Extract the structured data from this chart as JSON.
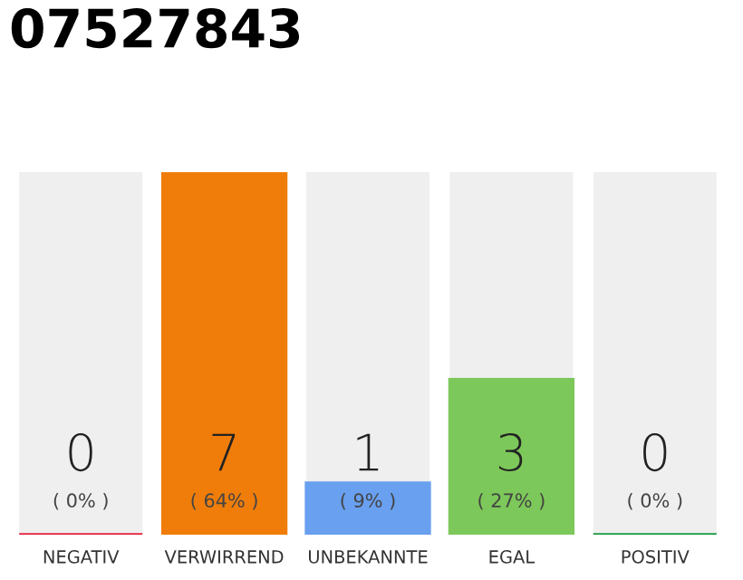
{
  "chart_data": {
    "type": "bar",
    "title": "07527843",
    "categories": [
      "NEGATIV",
      "VERWIRREND",
      "UNBEKANNTE",
      "EGAL",
      "POSITIV"
    ],
    "values": [
      0,
      7,
      1,
      3,
      0
    ],
    "colors": [
      "#e8203c",
      "#f07d0a",
      "#69a0f0",
      "#7dc85a",
      "#1a9a40"
    ],
    "value_labels": [
      "0\n( 0% )",
      "7\n( 64% )",
      "1\n( 9% )",
      "3\n( 27% )",
      "0\n( 0% )"
    ],
    "grid": false,
    "legend": false
  }
}
